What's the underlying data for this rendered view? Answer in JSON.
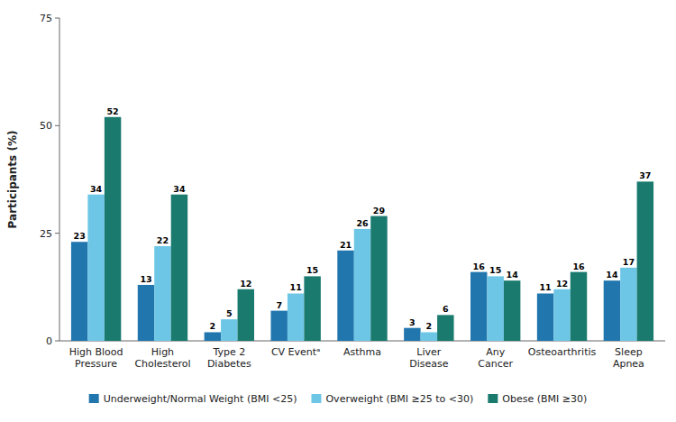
{
  "chart_data": {
    "type": "bar",
    "categories": [
      "High Blood\nPressure",
      "High\nCholesterol",
      "Type 2\nDiabetes",
      "CV Eventᵃ",
      "Asthma",
      "Liver\nDisease",
      "Any\nCancer",
      "Osteoarthritis",
      "Sleep\nApnea"
    ],
    "series": [
      {
        "name": "Underweight/Normal Weight (BMI <25)",
        "color": "#2176AE",
        "values": [
          23,
          13,
          2,
          7,
          21,
          3,
          16,
          11,
          14
        ]
      },
      {
        "name": "Overweight (BMI ≥25 to <30)",
        "color": "#6EC6E6",
        "values": [
          34,
          22,
          5,
          11,
          26,
          2,
          15,
          12,
          17
        ]
      },
      {
        "name": "Obese (BMI ≥30)",
        "color": "#1A7A6E",
        "values": [
          52,
          34,
          12,
          15,
          29,
          6,
          14,
          16,
          37
        ]
      }
    ],
    "ylabel": "Participants (%)",
    "ylim": [
      0,
      75
    ],
    "yticks": [
      0,
      25,
      50,
      75
    ],
    "grid": false,
    "legend": "bottom",
    "data_labels": true
  }
}
